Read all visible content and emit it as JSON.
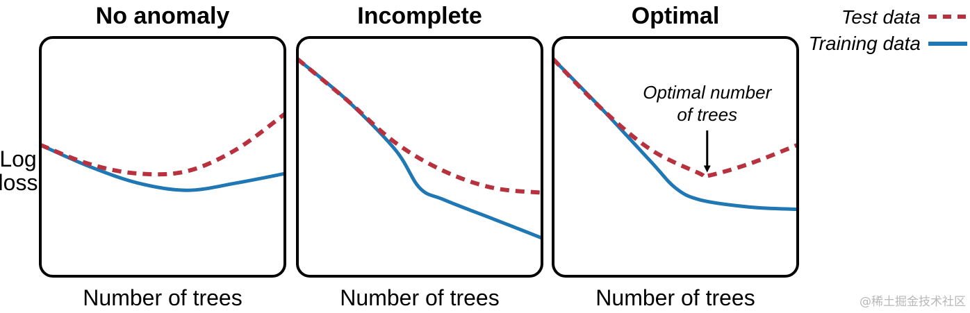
{
  "chart_data": {
    "type": "line",
    "y_label_lines": [
      "Log",
      "loss"
    ],
    "legend": {
      "placement": "top-right",
      "entries": [
        {
          "label": "Test data",
          "series": "test",
          "color": "#b7323e",
          "style": "dashed"
        },
        {
          "label": "Training data",
          "series": "training",
          "color": "#1f77b4",
          "style": "solid"
        }
      ]
    },
    "panels": [
      {
        "title": "No anomaly",
        "xlabel": "Number of trees",
        "series": {
          "test": [
            [
              0,
              0.55
            ],
            [
              0.2,
              0.47
            ],
            [
              0.4,
              0.43
            ],
            [
              0.6,
              0.44
            ],
            [
              0.8,
              0.53
            ],
            [
              1.0,
              0.68
            ]
          ],
          "training": [
            [
              0,
              0.55
            ],
            [
              0.2,
              0.46
            ],
            [
              0.4,
              0.39
            ],
            [
              0.6,
              0.36
            ],
            [
              0.8,
              0.39
            ],
            [
              1.0,
              0.43
            ]
          ]
        },
        "annotation": null
      },
      {
        "title": "Incomplete",
        "xlabel": "Number of trees",
        "series": {
          "test": [
            [
              0,
              0.91
            ],
            [
              0.2,
              0.74
            ],
            [
              0.4,
              0.56
            ],
            [
              0.6,
              0.44
            ],
            [
              0.8,
              0.37
            ],
            [
              1.0,
              0.35
            ]
          ],
          "training": [
            [
              0,
              0.91
            ],
            [
              0.2,
              0.74
            ],
            [
              0.4,
              0.53
            ],
            [
              0.5,
              0.37
            ],
            [
              0.6,
              0.32
            ],
            [
              0.8,
              0.24
            ],
            [
              1.0,
              0.16
            ]
          ]
        },
        "annotation": null
      },
      {
        "title": "Optimal",
        "xlabel": "Number of trees",
        "series": {
          "test": [
            [
              0,
              0.91
            ],
            [
              0.2,
              0.7
            ],
            [
              0.4,
              0.53
            ],
            [
              0.6,
              0.43
            ],
            [
              0.63,
              0.42
            ],
            [
              0.8,
              0.47
            ],
            [
              1.0,
              0.55
            ]
          ],
          "training": [
            [
              0,
              0.91
            ],
            [
              0.2,
              0.7
            ],
            [
              0.4,
              0.48
            ],
            [
              0.5,
              0.37
            ],
            [
              0.6,
              0.32
            ],
            [
              0.8,
              0.29
            ],
            [
              1.0,
              0.28
            ]
          ]
        },
        "annotation": {
          "lines": [
            "Optimal number",
            "of trees"
          ],
          "target_series": "test",
          "target_x": 0.63
        }
      }
    ]
  },
  "watermark": "@稀土掘金技术社区"
}
